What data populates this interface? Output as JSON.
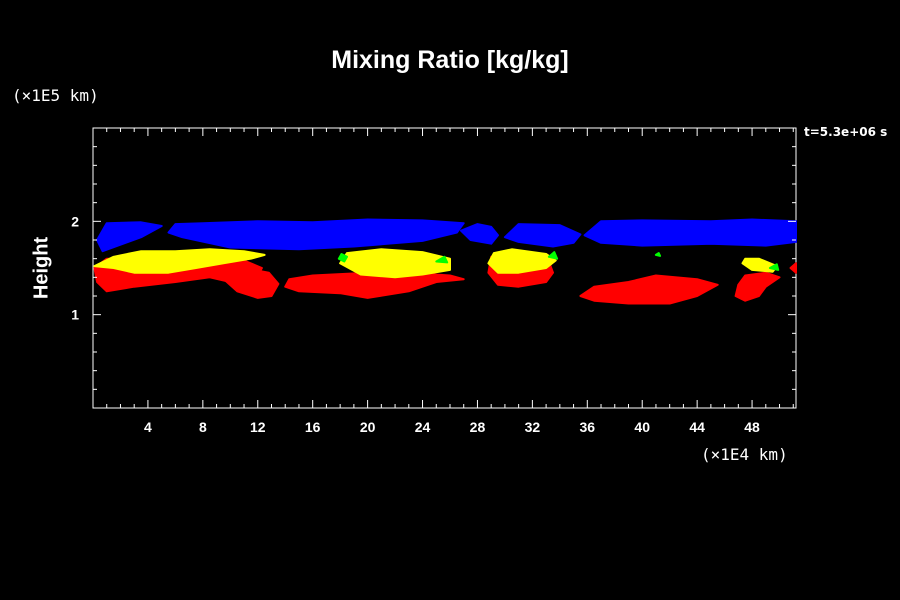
{
  "chart_data": {
    "type": "heatmap",
    "title": "Mixing Ratio [kg/kg]",
    "ylabel": "Height",
    "xlabel": "",
    "x_unit": "(×1E4 km)",
    "y_unit": "(×1E5 km)",
    "time_label": "t=5.3e+06 s",
    "xlim": [
      0,
      51.2
    ],
    "ylim": [
      0,
      3.0
    ],
    "x_ticks": [
      4,
      8,
      12,
      16,
      20,
      24,
      28,
      32,
      36,
      40,
      44,
      48
    ],
    "y_ticks": [
      1,
      2
    ],
    "colors": {
      "blue": "#0000ff",
      "yellow": "#ffff00",
      "red": "#ff0000",
      "green": "#00ff00"
    },
    "series": [
      {
        "color_key": "blue",
        "blobs": [
          [
            [
              0.3,
              1.8
            ],
            [
              0.7,
              1.68
            ],
            [
              3.5,
              1.83
            ],
            [
              5.0,
              1.95
            ],
            [
              3.5,
              1.99
            ],
            [
              1.0,
              1.98
            ]
          ],
          [
            [
              5.5,
              1.88
            ],
            [
              6.5,
              1.83
            ],
            [
              10.0,
              1.72
            ],
            [
              15.0,
              1.7
            ],
            [
              19.0,
              1.73
            ],
            [
              24.0,
              1.79
            ],
            [
              26.5,
              1.88
            ],
            [
              27.0,
              1.98
            ],
            [
              24.0,
              2.01
            ],
            [
              20.0,
              2.02
            ],
            [
              16.0,
              1.99
            ],
            [
              12.0,
              2.0
            ],
            [
              8.0,
              1.98
            ],
            [
              6.0,
              1.97
            ]
          ],
          [
            [
              26.8,
              1.9
            ],
            [
              27.5,
              1.8
            ],
            [
              29.0,
              1.76
            ],
            [
              29.5,
              1.85
            ],
            [
              29.0,
              1.94
            ],
            [
              28.0,
              1.97
            ]
          ],
          [
            [
              30.0,
              1.83
            ],
            [
              31.0,
              1.78
            ],
            [
              33.5,
              1.73
            ],
            [
              35.0,
              1.77
            ],
            [
              35.5,
              1.86
            ],
            [
              34.0,
              1.96
            ],
            [
              31.0,
              1.97
            ]
          ],
          [
            [
              35.8,
              1.85
            ],
            [
              37.0,
              1.77
            ],
            [
              40.0,
              1.74
            ],
            [
              45.0,
              1.76
            ],
            [
              49.0,
              1.74
            ],
            [
              51.2,
              1.78
            ],
            [
              51.2,
              2.0
            ],
            [
              48.0,
              2.02
            ],
            [
              45.0,
              2.0
            ],
            [
              40.0,
              2.01
            ],
            [
              37.0,
              2.0
            ]
          ]
        ]
      },
      {
        "color_key": "red",
        "blobs": [
          [
            [
              0.1,
              1.5
            ],
            [
              0.3,
              1.35
            ],
            [
              1.0,
              1.25
            ],
            [
              3.0,
              1.3
            ],
            [
              6.0,
              1.35
            ],
            [
              8.5,
              1.4
            ],
            [
              10.0,
              1.35
            ],
            [
              12.0,
              1.42
            ],
            [
              12.3,
              1.5
            ],
            [
              11.0,
              1.58
            ],
            [
              8.0,
              1.58
            ],
            [
              5.0,
              1.55
            ],
            [
              2.5,
              1.6
            ],
            [
              1.0,
              1.6
            ]
          ],
          [
            [
              9.0,
              1.45
            ],
            [
              10.5,
              1.25
            ],
            [
              12.0,
              1.18
            ],
            [
              13.0,
              1.2
            ],
            [
              13.5,
              1.33
            ],
            [
              12.8,
              1.45
            ],
            [
              11.0,
              1.5
            ]
          ],
          [
            [
              14.0,
              1.3
            ],
            [
              15.0,
              1.25
            ],
            [
              18.0,
              1.23
            ],
            [
              20.0,
              1.18
            ],
            [
              23.0,
              1.25
            ],
            [
              25.0,
              1.35
            ],
            [
              27.0,
              1.38
            ],
            [
              26.0,
              1.42
            ],
            [
              23.0,
              1.45
            ],
            [
              20.0,
              1.45
            ],
            [
              16.0,
              1.42
            ],
            [
              14.3,
              1.38
            ]
          ],
          [
            [
              28.8,
              1.45
            ],
            [
              29.5,
              1.32
            ],
            [
              31.0,
              1.3
            ],
            [
              33.0,
              1.35
            ],
            [
              33.5,
              1.45
            ],
            [
              33.0,
              1.65
            ],
            [
              30.0,
              1.68
            ],
            [
              29.0,
              1.62
            ]
          ],
          [
            [
              35.5,
              1.2
            ],
            [
              36.5,
              1.15
            ],
            [
              39.0,
              1.12
            ],
            [
              42.0,
              1.12
            ],
            [
              44.0,
              1.2
            ],
            [
              45.5,
              1.32
            ],
            [
              44.0,
              1.38
            ],
            [
              41.0,
              1.42
            ],
            [
              39.0,
              1.35
            ],
            [
              36.5,
              1.3
            ]
          ],
          [
            [
              46.8,
              1.2
            ],
            [
              47.5,
              1.15
            ],
            [
              48.5,
              1.2
            ],
            [
              49.0,
              1.3
            ],
            [
              50.0,
              1.4
            ],
            [
              49.0,
              1.45
            ],
            [
              47.5,
              1.42
            ],
            [
              47.0,
              1.32
            ]
          ],
          [
            [
              50.8,
              1.5
            ],
            [
              51.2,
              1.45
            ],
            [
              51.2,
              1.55
            ]
          ]
        ]
      },
      {
        "color_key": "yellow",
        "blobs": [
          [
            [
              0.1,
              1.52
            ],
            [
              1.5,
              1.5
            ],
            [
              3.0,
              1.45
            ],
            [
              5.5,
              1.45
            ],
            [
              7.5,
              1.5
            ],
            [
              9.5,
              1.55
            ],
            [
              11.5,
              1.6
            ],
            [
              12.5,
              1.64
            ],
            [
              11.0,
              1.68
            ],
            [
              8.5,
              1.7
            ],
            [
              6.0,
              1.68
            ],
            [
              3.5,
              1.68
            ],
            [
              1.5,
              1.62
            ]
          ],
          [
            [
              18.0,
              1.55
            ],
            [
              19.5,
              1.43
            ],
            [
              22.0,
              1.4
            ],
            [
              24.0,
              1.43
            ],
            [
              26.0,
              1.48
            ],
            [
              26.0,
              1.6
            ],
            [
              24.0,
              1.67
            ],
            [
              21.0,
              1.7
            ],
            [
              18.5,
              1.66
            ]
          ],
          [
            [
              28.8,
              1.55
            ],
            [
              29.5,
              1.45
            ],
            [
              31.0,
              1.45
            ],
            [
              33.0,
              1.5
            ],
            [
              33.7,
              1.58
            ],
            [
              33.0,
              1.65
            ],
            [
              30.5,
              1.7
            ],
            [
              29.2,
              1.66
            ]
          ],
          [
            [
              47.3,
              1.55
            ],
            [
              48.0,
              1.48
            ],
            [
              49.5,
              1.46
            ],
            [
              49.8,
              1.52
            ],
            [
              48.5,
              1.6
            ],
            [
              47.5,
              1.6
            ]
          ]
        ]
      },
      {
        "color_key": "green",
        "blobs": [
          [
            [
              17.9,
              1.6
            ],
            [
              18.3,
              1.57
            ],
            [
              18.5,
              1.62
            ],
            [
              18.1,
              1.65
            ]
          ],
          [
            [
              25.0,
              1.57
            ],
            [
              25.8,
              1.56
            ],
            [
              25.6,
              1.62
            ]
          ],
          [
            [
              33.2,
              1.62
            ],
            [
              33.8,
              1.6
            ],
            [
              33.6,
              1.67
            ]
          ],
          [
            [
              41.0,
              1.64
            ],
            [
              41.3,
              1.63
            ],
            [
              41.2,
              1.66
            ]
          ],
          [
            [
              49.3,
              1.5
            ],
            [
              49.9,
              1.48
            ],
            [
              49.8,
              1.54
            ]
          ]
        ]
      }
    ]
  }
}
